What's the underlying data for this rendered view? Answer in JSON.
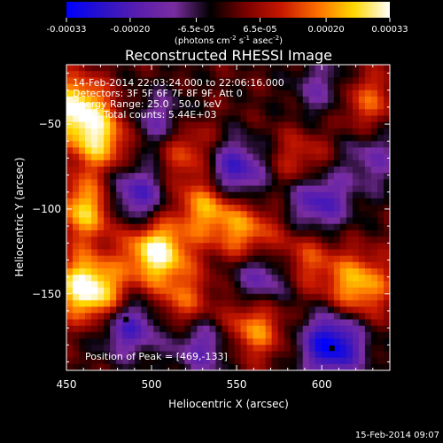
{
  "colorbar": {
    "tick_labels": [
      "-0.00033",
      "-0.00020",
      "-6.5e-05",
      "6.5e-05",
      "0.00020",
      "0.00033"
    ],
    "ticks": [
      -0.00033,
      -0.0002,
      -6.5e-05,
      6.5e-05,
      0.0002,
      0.00033
    ],
    "range": [
      -0.00033,
      0.00033
    ],
    "unit_label": "(photons cm",
    "unit_exp1": "-2",
    "unit_mid": " s",
    "unit_exp2": "-1",
    "unit_end": " asec",
    "unit_exp3": "-2",
    "unit_close": ")"
  },
  "chart_data": {
    "type": "heatmap",
    "title": "Reconstructed RHESSI Image",
    "xlabel": "Heliocentric X (arcsec)",
    "ylabel": "Heliocentric Y (arcsec)",
    "xlim": [
      450,
      640
    ],
    "ylim": [
      -195,
      -15
    ],
    "xticks": [
      450,
      500,
      550,
      600
    ],
    "yticks": [
      -50,
      -100,
      -150
    ],
    "xtick_labels": [
      "450",
      "500",
      "550",
      "600"
    ],
    "ytick_labels": [
      "−50",
      "−100",
      "−150"
    ],
    "peak_markers": [
      [
        485,
        -165
      ],
      [
        606,
        -182
      ]
    ],
    "sources": [
      {
        "x": 455,
        "y": -40,
        "v": 0.9
      },
      {
        "x": 470,
        "y": -60,
        "v": 0.75
      },
      {
        "x": 462,
        "y": -100,
        "v": 0.8
      },
      {
        "x": 460,
        "y": -145,
        "v": 0.9
      },
      {
        "x": 477,
        "y": -157,
        "v": 0.7
      },
      {
        "x": 520,
        "y": -65,
        "v": 0.55
      },
      {
        "x": 503,
        "y": -125,
        "v": 1.0
      },
      {
        "x": 533,
        "y": -98,
        "v": 0.7
      },
      {
        "x": 518,
        "y": -155,
        "v": 0.5
      },
      {
        "x": 556,
        "y": -115,
        "v": 0.6
      },
      {
        "x": 560,
        "y": -170,
        "v": 0.65
      },
      {
        "x": 590,
        "y": -130,
        "v": 0.45
      },
      {
        "x": 622,
        "y": -145,
        "v": 0.75
      },
      {
        "x": 624,
        "y": -36,
        "v": 0.55
      },
      {
        "x": 588,
        "y": -72,
        "v": 0.4
      },
      {
        "x": 490,
        "y": -92,
        "v": -0.7
      },
      {
        "x": 485,
        "y": -166,
        "v": -1.0
      },
      {
        "x": 606,
        "y": -180,
        "v": -1.0
      },
      {
        "x": 548,
        "y": -78,
        "v": -0.8
      },
      {
        "x": 565,
        "y": -140,
        "v": -0.6
      },
      {
        "x": 598,
        "y": -95,
        "v": -0.7
      },
      {
        "x": 505,
        "y": -50,
        "v": -0.5
      },
      {
        "x": 603,
        "y": -30,
        "v": -0.45
      },
      {
        "x": 530,
        "y": -180,
        "v": -0.55
      },
      {
        "x": 630,
        "y": -70,
        "v": -0.4
      }
    ]
  },
  "overlay": {
    "line1": "14-Feb-2014 22:03:24.000 to 22:06:16.000",
    "line2": "Detectors: 3F 5F 6F 7F 8F 9F, Att 0",
    "line3": "Energy Range: 25.0 - 50.0 keV",
    "line4": "Clean    Total counts: 5.44E+03",
    "peak": "Position of Peak = [469,-133]"
  },
  "footer": {
    "date": "15-Feb-2014 09:07"
  },
  "colors": {
    "background": "#000000",
    "colortable": [
      "#0000ff",
      "#2a12c8",
      "#5a1eae",
      "#7a2da0",
      "#000000",
      "#7a0000",
      "#c81800",
      "#ff7000",
      "#ffd800",
      "#ffffff"
    ]
  }
}
